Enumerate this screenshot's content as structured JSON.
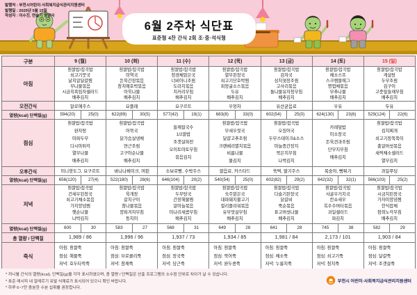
{
  "header": {
    "info_lines": [
      "발행처 : 부천시어린이·사회복지급식관리지원센터",
      "발행일 : 2025년 5월 15일",
      "작성자 : 이수진, 연슬기 영양사"
    ],
    "title": "6월 2주차 식단표",
    "subtitle": "표준형 4찬 간식 2회 조·중·석식형"
  },
  "table": {
    "corner_label": "구분",
    "days": [
      "9 (월)",
      "10 (화)",
      "11 (수)",
      "12 (목)",
      "13 (금)",
      "14 (토)",
      "15 (일)"
    ],
    "row_labels": {
      "breakfast": "아침",
      "am_snack": "오전간식",
      "kcal_protein": "열량(kcal) 단백질(g)",
      "lunch": "점심",
      "pm_snack": "오후간식",
      "dinner": "저녁",
      "total": "총 열량 / 단백질",
      "porridge": "죽식"
    },
    "breakfast": [
      [
        "흰쌀밥/잡곡밥",
        "쇠고기뭇국",
        "날치알달걀찜",
        "무나물볶음",
        "시금치흑임자샐러드",
        "배추김치"
      ],
      [
        "흰쌀밥/잡곡밥",
        "미역국",
        "돈육간장볶음",
        "참치애호박볶음",
        "아욱나물",
        "배추김치"
      ],
      [
        "흰쌀밥/잡곡밥",
        "청경채맑은국",
        "너비아니조림",
        "도라지볶음",
        "치커리무침",
        "배추김치"
      ],
      [
        "흰쌀밥/잡곡밥",
        "열무된장국",
        "쇠고기단호박찜",
        "피망굴소스볶음",
        "두유",
        "배추김치"
      ],
      [
        "흰쌀밥/잡곡밥",
        "감자국",
        "삼치엿장조림",
        "고사리볶음",
        "돌나물유자청무침",
        "배추김치"
      ],
      [
        "흰쌀밥/잡곡밥",
        "채소스프",
        "스크램블에그",
        "명엽채볶음",
        "부추나물",
        "배추김치"
      ],
      [
        "흰쌀밥/잡곡밥",
        "게살탕",
        "두부조림",
        "김구이",
        "고춧잎들깨무침",
        "배추김치"
      ]
    ],
    "am_snack": [
      "알로에주스",
      "요플레",
      "요구르트",
      "우엉차",
      "유산균음료",
      "우유",
      "두유"
    ],
    "kcal1": [
      [
        "594(20)",
        "25(0)"
      ],
      [
        "622(89)",
        "30(5)"
      ],
      [
        "577(42)",
        "19(1)"
      ],
      [
        "683(8)",
        "33(0)"
      ],
      [
        "602(54)",
        "25(0)"
      ],
      [
        "624(130)",
        "23(6)"
      ],
      [
        "529(124)",
        "22(6)"
      ]
    ],
    "lunch": [
      [
        "흰쌀밥/잡곡밥",
        "완자탕",
        "마파두부",
        "다시마튀각",
        "열무나물",
        "배추김치"
      ],
      [
        "흰쌀밥/잡곡밥",
        "어묵국",
        "닭가슴살냉채",
        "연근조림",
        "고구마순나물",
        "배추김치"
      ],
      [
        "들깨칼국수",
        "1/2쌀밥",
        "조갯살파전",
        "오이토마토무침",
        "볶음김치"
      ],
      [
        "흰쌀밥/잡곡밥",
        "무새우젓국",
        "달걀고추조림",
        "크랜베리멸치볶음",
        "비름나물",
        "물김치"
      ],
      [
        "흰쌀밥/잡곡밥",
        "오징어국",
        "두부스테이크&소스",
        "마늘종간장지",
        "묵은지무침",
        "나박김치"
      ],
      [
        "카레덮밥",
        "미소장국",
        "돈육견과조림",
        "단무지무침",
        "배추김치"
      ],
      [
        "흰쌀밥/잡곡밥",
        "김치찌개",
        "쇠고기장똑똑이",
        "총알버섯볶음",
        "새싹채소샐러드",
        "열무김치"
      ]
    ],
    "pm_snack": [
      "미니핫도그, 요구르트",
      "바나나쉐이크, 머핀",
      "소보로빵, 수박주스",
      "쌀음료, 카스타드",
      "쑥떡, 딸기주스",
      "복숭아, 뻥튀기",
      "과일푸딩"
    ],
    "kcal2": [
      [
        "656(120)",
        "27(4)"
      ],
      [
        "522(180)",
        "28(6)"
      ],
      [
        "646(104)",
        "20(2)"
      ],
      [
        "540(54)",
        "25(0)"
      ],
      [
        "602(82)",
        "29(2)"
      ],
      [
        "642(32)",
        "32(1)"
      ],
      [
        "566(103)",
        "25(2)"
      ]
    ],
    "dinner": [
      [
        "흰쌀밥/잡곡밥",
        "건새우된장국",
        "쇠고기채소볶음",
        "가지양념찜",
        "햇순나물",
        "나박김치"
      ],
      [
        "흰쌀밥/잡곡밥",
        "육개장",
        "갈치구이",
        "참나물볶음",
        "양파겨자무침",
        "동치미"
      ],
      [
        "흰쌀밥/잡곡밥",
        "두부탕국",
        "간장해물찜",
        "알마늘볶음",
        "미나리새콤무침",
        "배추김치"
      ],
      [
        "흰쌀밥/잡곡밥",
        "숙주맑은국",
        "대파돼지불고기",
        "컬리플라워볶음",
        "유부맛살무침",
        "배추김치"
      ],
      [
        "흰쌀밥/잡곡밥",
        "다슬기된장국",
        "닭갈비",
        "죽순볶음",
        "표고버섯나물",
        "배추김치"
      ],
      [
        "흰쌀밥/잡곡밥",
        "사골우거지국",
        "칸쇼새우",
        "옥수수버터볶음",
        "과일샐러드",
        "파김치"
      ],
      [
        "흰쌀밥/잡곡밥",
        "시금치된장국",
        "가자미양념찜",
        "한식잡채",
        "참외노각무침",
        "배추김치"
      ]
    ],
    "kcal3": [
      [
        "600",
        "30"
      ],
      [
        "583",
        "27"
      ],
      [
        "568",
        "31"
      ],
      [
        "649",
        "28"
      ],
      [
        "641",
        "28"
      ],
      [
        "745",
        "38"
      ],
      [
        "582",
        "29"
      ]
    ],
    "totals": [
      "1,989 / 86",
      "1,996 / 96",
      "1,937 / 73",
      "1,934 / 85",
      "1,981 / 84",
      "2,173 / 101",
      "1,903 / 84"
    ],
    "porridge": [
      [
        "아침: 흰쌀죽",
        "점심: 해물죽",
        "저녁: 호두타락죽"
      ],
      [
        "아침: 흰쌀죽",
        "점심: 브로콜리죽",
        "저녁: 참깨죽"
      ],
      [
        "아침: 흰쌀죽",
        "점심: 장국죽",
        "저녁: 당근죽"
      ],
      [
        "아침: 흰쌀죽",
        "점심: 북어죽",
        "저녁: 완두콩죽"
      ],
      [
        "아침: 흰쌀죽",
        "점심: 채소죽",
        "저녁: 누룽지죽"
      ],
      [
        "아침: 흰쌀죽",
        "점심: 쇠고기죽",
        "저녁: 참치죽"
      ],
      [
        "아침: 흰쌀죽",
        "점심: 달걀죽",
        "저녁: 조갯살죽"
      ]
    ]
  },
  "footnotes": [
    "* 끼니별 간식의 열량(kcal), 단백질(g)을 각각 표시하였으며, 총 열량 / 단백질은 산출 프로그램의 소수점 단위로 차이가 날 수 있습니다.",
    "* 표준 레시피 내 알레르기 유발 식재료가 표시되어 있으니 확인 바랍니다.",
    "* 하루 6~7잔 충분한 수분 섭취를 권장합니다."
  ],
  "footer": {
    "logo_text": "부천시 어린이·사회복지급식관리지원센터"
  },
  "colors": {
    "banner_pink": "#f8ccd8",
    "cell_pink": "#fbdde4",
    "page_pink": "#fdeef1",
    "sunday_red": "#e03131",
    "floor_gold": "#d7a41c",
    "logo_orange": "#f08300"
  }
}
